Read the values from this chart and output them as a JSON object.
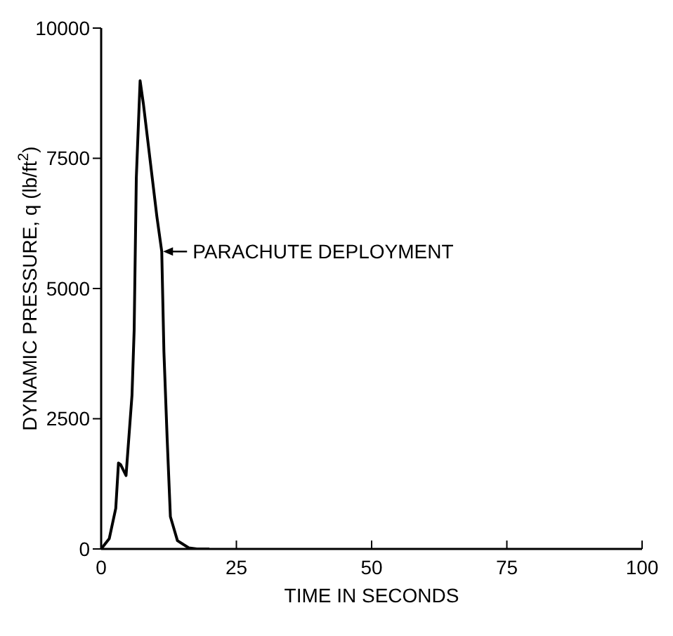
{
  "chart_data": {
    "type": "line",
    "xlabel": "TIME IN SECONDS",
    "ylabel": "DYNAMIC PRESSURE, q (lb/ft$^{2}$)",
    "x": [
      0,
      1.5,
      2.7,
      3.2,
      3.6,
      4.6,
      5.7,
      6.1,
      6.5,
      7.2,
      7.8,
      10.3,
      11.2,
      11.6,
      12.2,
      12.8,
      14.1,
      16.2,
      17.7,
      20
    ],
    "series": [
      {
        "color": "#000000",
        "values": [
          0,
          200,
          780,
          1650,
          1620,
          1410,
          2950,
          4200,
          7130,
          8990,
          8550,
          6380,
          5710,
          3790,
          2120,
          620,
          160,
          20,
          0,
          0
        ]
      }
    ],
    "xlim": [
      0,
      100
    ],
    "ylim": [
      0,
      10000
    ],
    "xticks": [
      0,
      25,
      50,
      75,
      100
    ],
    "yticks": [
      0,
      2500,
      5000,
      7500,
      10000
    ],
    "grid": false,
    "legend": false,
    "marker": "none",
    "line_style": "solid",
    "annotations": [
      {
        "text": "PARACHUTE DEPLOYMENT",
        "x": 11.2,
        "y": 5710
      }
    ]
  }
}
